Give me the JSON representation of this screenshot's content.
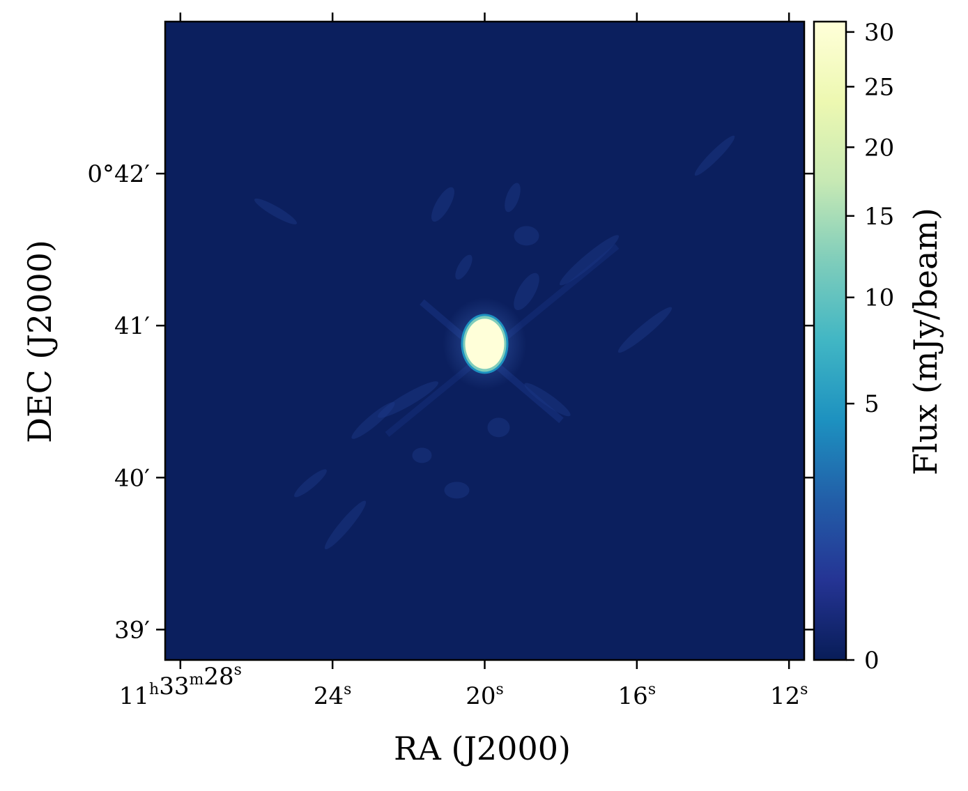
{
  "chart_data": {
    "type": "heatmap",
    "title": "",
    "xlabel": "RA (J2000)",
    "ylabel": "DEC (J2000)",
    "x_ticks": [
      {
        "main": "11",
        "parts": [
          {
            "sup": "h"
          },
          {
            "text": "33"
          },
          {
            "sup": "m"
          },
          {
            "text": "28"
          },
          {
            "sup": "s"
          }
        ]
      },
      {
        "main": "24",
        "parts": [
          {
            "sup": "s"
          }
        ]
      },
      {
        "main": "20",
        "parts": [
          {
            "sup": "s"
          }
        ]
      },
      {
        "main": "16",
        "parts": [
          {
            "sup": "s"
          }
        ]
      },
      {
        "main": "12",
        "parts": [
          {
            "sup": "s"
          }
        ]
      }
    ],
    "x_tick_seconds": [
      28,
      24,
      20,
      16,
      12
    ],
    "x_range_seconds": [
      28.4,
      11.6
    ],
    "y_ticks": [
      "0°42′",
      "41′",
      "40′",
      "39′"
    ],
    "y_tick_arcmin": [
      42,
      41,
      40,
      39
    ],
    "y_range_arcmin": [
      38.8,
      43.0
    ],
    "colorbar": {
      "label": "Flux (mJy/beam)",
      "ticks": [
        "0",
        "5",
        "10",
        "15",
        "20",
        "25",
        "30"
      ],
      "tick_values": [
        0,
        5,
        10,
        15,
        20,
        25,
        30
      ],
      "range": [
        0,
        31
      ],
      "scale": "sqrt",
      "colormap": "YlGnBu",
      "stops": [
        "#081d58",
        "#253494",
        "#225ea8",
        "#1d91c0",
        "#41b6c4",
        "#7fcdbb",
        "#c7e9b4",
        "#edf8b1",
        "#ffffd9"
      ]
    },
    "source": {
      "ra_seconds": 20.0,
      "dec_arcmin": 40.88,
      "peak_flux": 31
    },
    "background_color": "#0b1f5e",
    "grid": false
  }
}
